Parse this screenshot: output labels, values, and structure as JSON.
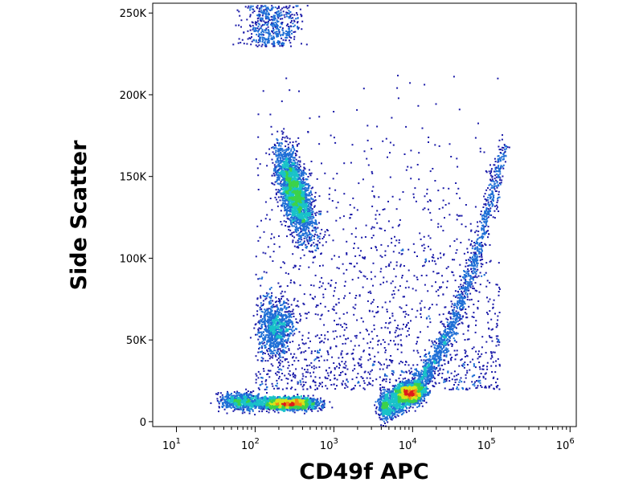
{
  "chart_data": {
    "type": "scatter",
    "title": "",
    "xlabel": "CD49f APC",
    "ylabel": "Side Scatter",
    "xscale": "log",
    "xlim": [
      5,
      1200000
    ],
    "ylim": [
      -3000,
      256000
    ],
    "x_ticks": [
      {
        "base": "10",
        "exp": "1",
        "value": 10
      },
      {
        "base": "10",
        "exp": "2",
        "value": 100
      },
      {
        "base": "10",
        "exp": "3",
        "value": 1000
      },
      {
        "base": "10",
        "exp": "4",
        "value": 10000
      },
      {
        "base": "10",
        "exp": "5",
        "value": 100000
      },
      {
        "base": "10",
        "exp": "6",
        "value": 1000000
      }
    ],
    "y_ticks": [
      {
        "label": "0",
        "value": 0
      },
      {
        "label": "50K",
        "value": 50000
      },
      {
        "label": "100K",
        "value": 100000
      },
      {
        "label": "150K",
        "value": 150000
      },
      {
        "label": "200K",
        "value": 200000
      },
      {
        "label": "250K",
        "value": 250000
      }
    ],
    "grid": false,
    "legend": "none",
    "color_map": "density (blue-green-yellow-red)",
    "populations": [
      {
        "x_center": 320,
        "y_center": 140000,
        "peak_density": "yellow"
      },
      {
        "x_center": 180,
        "y_center": 60000,
        "peak_density": "blue-green"
      },
      {
        "x_center": 300,
        "y_center": 11000,
        "peak_density": "green-yellow"
      },
      {
        "x_center": 8000,
        "y_center": 16000,
        "peak_density": "red"
      },
      {
        "x_center": 60000,
        "y_center": 90000,
        "peak_density": "blue-green"
      }
    ]
  }
}
